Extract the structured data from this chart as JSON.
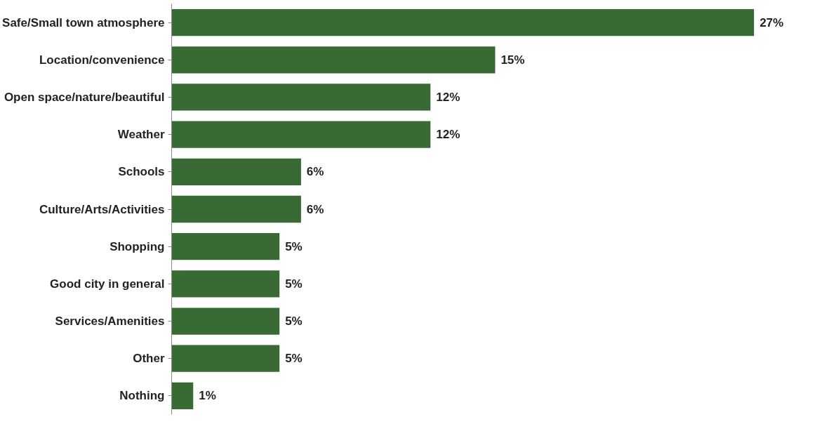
{
  "chart_data": {
    "type": "bar",
    "orientation": "horizontal",
    "categories": [
      "Safe/Small town atmosphere",
      "Location/convenience",
      "Open space/nature/beautiful",
      "Weather",
      "Schools",
      "Culture/Arts/Activities",
      "Shopping",
      "Good city in general",
      "Services/Amenities",
      "Other",
      "Nothing"
    ],
    "values": [
      27,
      15,
      12,
      12,
      6,
      6,
      5,
      5,
      5,
      5,
      1
    ],
    "value_labels": [
      "27%",
      "15%",
      "12%",
      "12%",
      "6%",
      "6%",
      "5%",
      "5%",
      "5%",
      "5%",
      "1%"
    ],
    "color": "#386b34"
  }
}
